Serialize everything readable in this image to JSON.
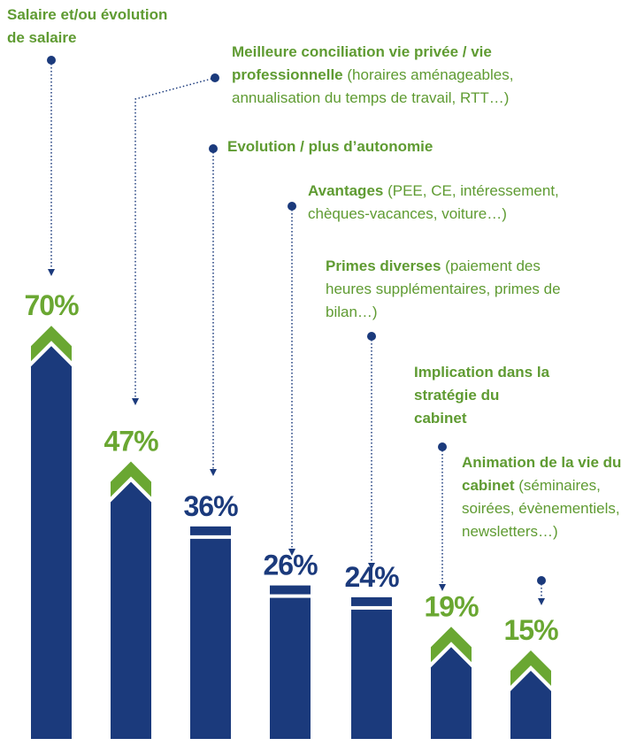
{
  "chart_data": {
    "type": "bar",
    "categories": [
      "Salaire et/ou évolution de salaire",
      "Meilleure conciliation vie privée / vie professionnelle",
      "Evolution / plus d’autonomie",
      "Avantages",
      "Primes diverses",
      "Implication dans la stratégie du cabinet",
      "Animation de la vie du cabinet"
    ],
    "details": [
      null,
      "(horaires aménageables, annualisation du temps de travail, RTT…)",
      null,
      "(PEE, CE, intéressement, chèques-vacances, voiture…)",
      "(paiement des heures supplémentaires, primes de bilan…)",
      null,
      "(séminaires, soirées, évènementiels, newsletters…)"
    ],
    "values": [
      70,
      47,
      36,
      26,
      24,
      19,
      15
    ],
    "value_labels": [
      "70%",
      "47%",
      "36%",
      "26%",
      "24%",
      "19%",
      "15%"
    ],
    "color": "#1b3a7c",
    "accent_color": "#6aa732",
    "markers": [
      "arrow",
      "arrow",
      "flat",
      "flat",
      "flat",
      "arrow",
      "arrow"
    ]
  }
}
